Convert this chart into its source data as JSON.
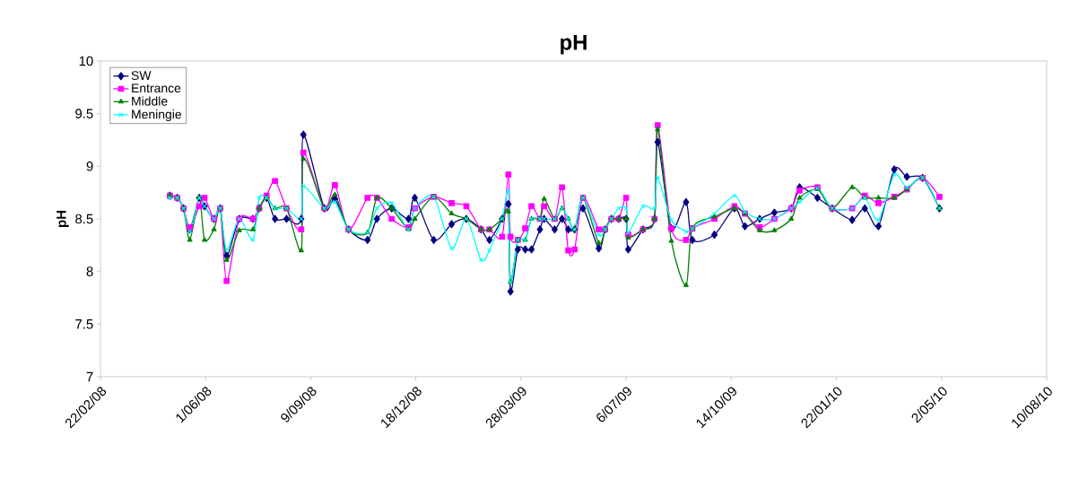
{
  "chart_data": {
    "type": "line",
    "title": "pH",
    "ylabel": "pH",
    "x": [
      "2008-04-28",
      "2008-05-05",
      "2008-05-11",
      "2008-05-17",
      "2008-05-26",
      "2008-05-31",
      "2008-06-09",
      "2008-06-15",
      "2008-06-21",
      "2008-07-03",
      "2008-07-16",
      "2008-07-22",
      "2008-07-29",
      "2008-08-06",
      "2008-08-17",
      "2008-08-31",
      "2008-09-02",
      "2008-09-22",
      "2008-10-02",
      "2008-10-15",
      "2008-11-02",
      "2008-11-11",
      "2008-11-25",
      "2008-12-11",
      "2008-12-17",
      "2009-01-04",
      "2009-01-21",
      "2009-02-04",
      "2009-02-18",
      "2009-02-26",
      "2009-03-10",
      "2009-03-16",
      "2009-03-18",
      "2009-03-25",
      "2009-04-01",
      "2009-04-07",
      "2009-04-15",
      "2009-04-19",
      "2009-04-29",
      "2009-05-06",
      "2009-05-12",
      "2009-05-18",
      "2009-05-26",
      "2009-06-10",
      "2009-06-16",
      "2009-06-22",
      "2009-06-29",
      "2009-07-06",
      "2009-07-08",
      "2009-07-22",
      "2009-08-02",
      "2009-08-05",
      "2009-08-18",
      "2009-09-01",
      "2009-09-07",
      "2009-09-28",
      "2009-10-17",
      "2009-10-27",
      "2009-11-10",
      "2009-11-24",
      "2009-12-10",
      "2009-12-18",
      "2010-01-04",
      "2010-01-18",
      "2010-02-06",
      "2010-02-18",
      "2010-03-03",
      "2010-03-18",
      "2010-03-30",
      "2010-04-14",
      "2010-04-30"
    ],
    "series": [
      {
        "name": "SW",
        "color": "#000080",
        "marker": "diamond",
        "values": [
          8.72,
          8.7,
          8.6,
          8.4,
          8.7,
          8.62,
          8.5,
          8.6,
          8.15,
          8.5,
          8.5,
          8.6,
          8.7,
          8.5,
          8.5,
          8.5,
          9.3,
          8.6,
          8.69,
          8.4,
          8.3,
          8.5,
          8.6,
          8.5,
          8.7,
          8.3,
          8.45,
          8.5,
          8.4,
          8.3,
          8.5,
          8.64,
          7.81,
          8.21,
          8.21,
          8.21,
          8.4,
          8.5,
          8.4,
          8.5,
          8.4,
          8.4,
          8.6,
          8.22,
          8.4,
          8.5,
          8.5,
          8.5,
          8.21,
          8.4,
          8.5,
          9.23,
          8.41,
          8.66,
          8.3,
          8.35,
          8.6,
          8.43,
          8.5,
          8.56,
          8.6,
          8.8,
          8.7,
          8.6,
          8.49,
          8.6,
          8.43,
          8.97,
          8.9,
          8.89,
          8.6
        ]
      },
      {
        "name": "Entrance",
        "color": "#ff00ff",
        "marker": "square",
        "values": [
          8.72,
          8.7,
          8.6,
          8.42,
          8.62,
          8.7,
          8.5,
          8.6,
          7.91,
          8.5,
          8.5,
          8.6,
          8.72,
          8.86,
          8.6,
          8.4,
          9.13,
          8.6,
          8.82,
          8.4,
          8.7,
          8.7,
          8.5,
          8.42,
          8.6,
          8.71,
          8.65,
          8.62,
          8.4,
          8.4,
          8.33,
          8.92,
          8.33,
          8.3,
          8.41,
          8.62,
          8.5,
          8.62,
          8.5,
          8.8,
          8.2,
          8.21,
          8.7,
          8.4,
          8.4,
          8.5,
          8.5,
          8.7,
          8.35,
          8.4,
          8.5,
          9.39,
          8.41,
          8.3,
          8.41,
          8.5,
          8.62,
          8.55,
          8.42,
          8.5,
          8.6,
          8.77,
          8.8,
          8.6,
          8.6,
          8.72,
          8.65,
          8.71,
          8.78,
          8.89,
          8.71
        ]
      },
      {
        "name": "Middle",
        "color": "#008000",
        "marker": "triangle",
        "values": [
          8.72,
          8.7,
          8.6,
          8.3,
          8.7,
          8.3,
          8.4,
          8.6,
          8.11,
          8.39,
          8.4,
          8.6,
          8.7,
          8.6,
          8.6,
          8.2,
          9.07,
          8.6,
          8.73,
          8.4,
          8.37,
          8.7,
          8.6,
          8.4,
          8.5,
          8.71,
          8.55,
          8.5,
          8.4,
          8.4,
          8.5,
          8.57,
          7.9,
          8.3,
          8.3,
          8.5,
          8.5,
          8.69,
          8.5,
          8.6,
          8.5,
          8.4,
          8.7,
          8.27,
          8.4,
          8.5,
          8.5,
          8.5,
          8.32,
          8.4,
          8.5,
          9.35,
          8.29,
          7.87,
          8.41,
          8.52,
          8.6,
          8.55,
          8.39,
          8.39,
          8.5,
          8.7,
          8.78,
          8.6,
          8.8,
          8.7,
          8.7,
          8.7,
          8.78,
          8.89,
          8.6
        ]
      },
      {
        "name": "Meningie",
        "color": "#00ffff",
        "marker": "cross",
        "values": [
          8.7,
          8.7,
          8.6,
          8.38,
          8.7,
          8.62,
          8.5,
          8.6,
          8.21,
          8.5,
          8.3,
          8.7,
          8.7,
          8.6,
          8.6,
          8.5,
          8.81,
          8.6,
          8.66,
          8.4,
          8.37,
          8.6,
          8.65,
          8.4,
          8.6,
          8.71,
          8.22,
          8.5,
          8.11,
          8.2,
          8.5,
          8.76,
          7.9,
          8.3,
          8.3,
          8.5,
          8.5,
          8.5,
          8.5,
          8.6,
          8.5,
          8.4,
          8.7,
          8.35,
          8.4,
          8.5,
          8.6,
          8.6,
          8.37,
          8.62,
          8.6,
          8.89,
          8.49,
          8.38,
          8.41,
          8.55,
          8.72,
          8.57,
          8.5,
          8.5,
          8.6,
          8.66,
          8.79,
          8.6,
          8.6,
          8.7,
          8.49,
          8.92,
          8.8,
          8.89,
          8.6
        ]
      }
    ],
    "xlim": [
      "2008-02-22",
      "2010-08-10"
    ],
    "xticks": [
      {
        "value": "2008-02-22",
        "label": "22/02/08"
      },
      {
        "value": "2008-06-01",
        "label": "1/06/08"
      },
      {
        "value": "2008-09-09",
        "label": "9/09/08"
      },
      {
        "value": "2008-12-18",
        "label": "18/12/08"
      },
      {
        "value": "2009-03-28",
        "label": "28/03/09"
      },
      {
        "value": "2009-07-06",
        "label": "6/07/09"
      },
      {
        "value": "2009-10-14",
        "label": "14/10/09"
      },
      {
        "value": "2010-01-22",
        "label": "22/01/10"
      },
      {
        "value": "2010-05-02",
        "label": "2/05/10"
      },
      {
        "value": "2010-08-10",
        "label": "10/08/10"
      }
    ],
    "ylim": [
      7,
      10
    ],
    "yticks": [
      7,
      7.5,
      8,
      8.5,
      9,
      9.5,
      10
    ],
    "grid": false,
    "legend": "top left",
    "line_style": "solid"
  }
}
